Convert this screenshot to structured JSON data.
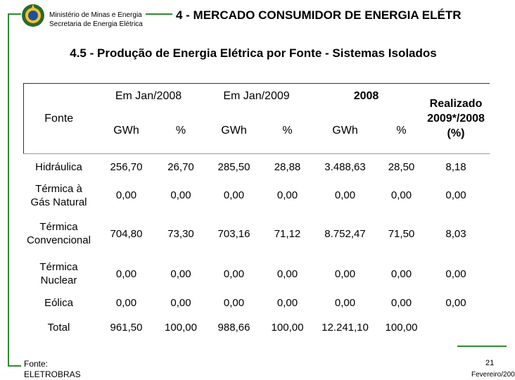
{
  "header": {
    "org": [
      "Ministério de Minas e Energia",
      "Secretaria de Energia Elétrica"
    ],
    "title": "4 - MERCADO CONSUMIDOR DE ENERGIA ELÉTR"
  },
  "subtitle": "4.5 - Produção de Energia Elétrica por Fonte - Sistemas Isolados",
  "table": {
    "header": {
      "fonte": "Fonte",
      "groups": [
        "Em Jan/2008",
        "Em Jan/2009",
        "2008",
        "Realizado 2009*/2008 (%)"
      ],
      "units": [
        "GWh",
        "%",
        "GWh",
        "%",
        "GWh",
        "%"
      ]
    },
    "rows": [
      [
        "Hidráulica",
        "256,70",
        "26,70",
        "285,50",
        "28,88",
        "3.488,63",
        "28,50",
        "8,18"
      ],
      [
        "Térmica à Gás Natural",
        "0,00",
        "0,00",
        "0,00",
        "0,00",
        "0,00",
        "0,00",
        "0,00"
      ],
      [
        "Térmica Convencional",
        "704,80",
        "73,30",
        "703,16",
        "71,12",
        "8.752,47",
        "71,50",
        "8,03"
      ],
      [
        "Térmica Nuclear",
        "0,00",
        "0,00",
        "0,00",
        "0,00",
        "0,00",
        "0,00",
        "0,00"
      ],
      [
        "Eólica",
        "0,00",
        "0,00",
        "0,00",
        "0,00",
        "0,00",
        "0,00",
        "0,00"
      ],
      [
        "Total",
        "961,50",
        "100,00",
        "988,66",
        "100,00",
        "12.241,10",
        "100,00"
      ]
    ]
  },
  "footer": {
    "source_label": "Fonte:",
    "source": "ELETROBRAS",
    "page": "21",
    "date": "Fevereiro/200"
  }
}
